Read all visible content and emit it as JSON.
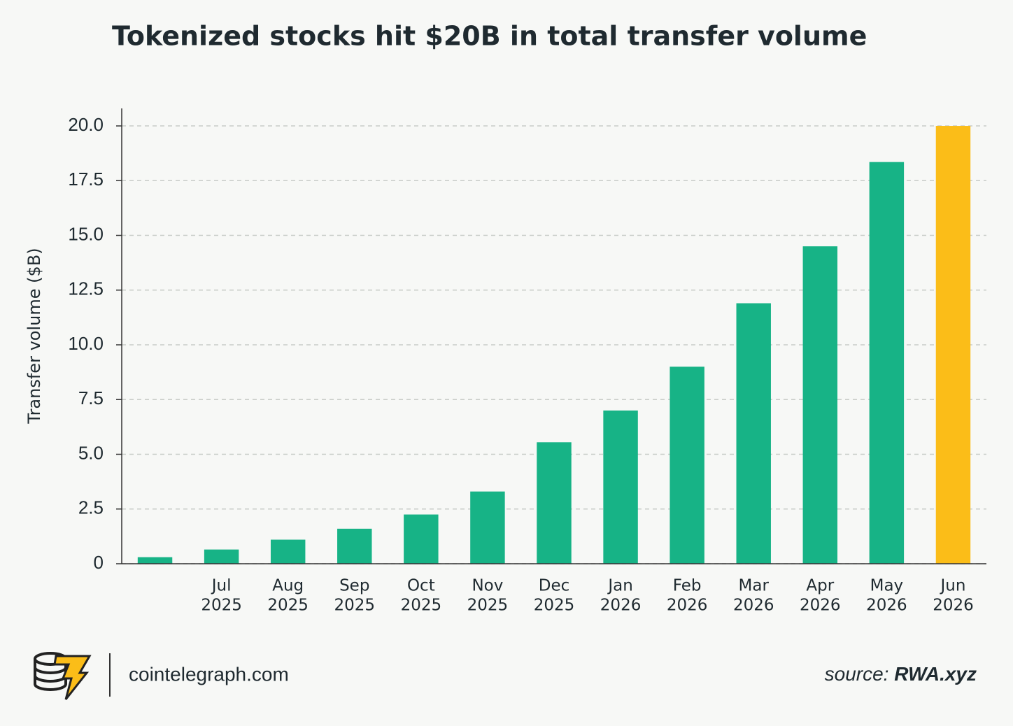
{
  "chart_data": {
    "type": "bar",
    "title": "Tokenized stocks hit $20B in total transfer volume",
    "y_label": "Transfer volume ($B)",
    "categories": [
      null,
      [
        "Jul",
        "2025"
      ],
      [
        "Aug",
        "2025"
      ],
      [
        "Sep",
        "2025"
      ],
      [
        "Oct",
        "2025"
      ],
      [
        "Nov",
        "2025"
      ],
      [
        "Dec",
        "2025"
      ],
      [
        "Jan",
        "2026"
      ],
      [
        "Feb",
        "2026"
      ],
      [
        "Mar",
        "2026"
      ],
      [
        "Apr",
        "2026"
      ],
      [
        "May",
        "2026"
      ],
      [
        "Jun",
        "2026"
      ]
    ],
    "values": [
      0.3,
      0.65,
      1.1,
      1.6,
      2.25,
      3.3,
      5.55,
      7.0,
      9.0,
      11.9,
      14.5,
      18.35,
      20.0
    ],
    "colors": [
      "#17b386",
      "#17b386",
      "#17b386",
      "#17b386",
      "#17b386",
      "#17b386",
      "#17b386",
      "#17b386",
      "#17b386",
      "#17b386",
      "#17b386",
      "#17b386",
      "#fbbd18"
    ],
    "ylim": [
      0,
      20.8
    ],
    "yticks": [
      0,
      2.5,
      {
        "value": 5,
        "label": "5.0"
      },
      7.5,
      {
        "value": 10,
        "label": "10.0"
      },
      12.5,
      {
        "value": 15,
        "label": "15.0"
      },
      17.5,
      {
        "value": 20,
        "label": "20.0"
      }
    ],
    "grid": true
  },
  "footer": {
    "site": "cointelegraph.com",
    "source_label": "source:",
    "source_name": "RWA.xyz"
  }
}
